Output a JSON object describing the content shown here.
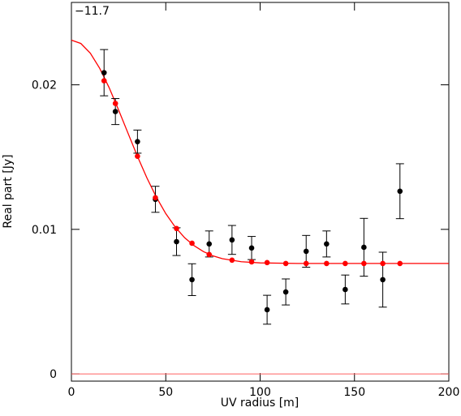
{
  "chart_data": {
    "type": "scatter",
    "annotation": "−11.7",
    "x_label": "UV radius [m]",
    "y_label": "Real part [Jy]",
    "xlim": [
      0,
      200
    ],
    "ylim": [
      -0.0005,
      0.0257
    ],
    "xticks": [
      0,
      50,
      100,
      150,
      200
    ],
    "yticks": [
      0,
      0.01,
      0.02
    ],
    "zero_line_color": "#ff6060",
    "series": [
      {
        "color": "#000000",
        "x": [
          17.3,
          23.3,
          35,
          44.5,
          55.7,
          63.9,
          73,
          85.1,
          95.5,
          103.7,
          113.6,
          124.4,
          135.2,
          145.1,
          155,
          165,
          174.1
        ],
        "values": [
          0.02084,
          0.01815,
          0.01607,
          0.01208,
          0.00915,
          0.00652,
          0.00899,
          0.00927,
          0.00871,
          0.00444,
          0.00567,
          0.00848,
          0.00899,
          0.00584,
          0.00876,
          0.00652,
          0.01264
        ],
        "errors": [
          0.0016,
          0.0009,
          0.0008,
          0.0009,
          0.00096,
          0.0011,
          0.0009,
          0.001,
          0.0008,
          0.001,
          0.0009,
          0.0011,
          0.0009,
          0.001,
          0.002,
          0.0019,
          0.0019
        ]
      },
      {
        "color": "#ff0000",
        "x": [
          17.3,
          23.3,
          35,
          44.5,
          55.7,
          63.9,
          73,
          85.1,
          95.5,
          103.7,
          113.6,
          124.4,
          135.2,
          145.1,
          155,
          165,
          174.1
        ],
        "values": [
          0.02028,
          0.01871,
          0.01506,
          0.01219,
          0.01006,
          0.00904,
          0.00826,
          0.00787,
          0.00775,
          0.0077,
          0.00764,
          0.00764,
          0.00764,
          0.00764,
          0.00764,
          0.00764,
          0.00764
        ]
      }
    ],
    "model_curve": {
      "color": "#ff0000",
      "x": [
        0,
        5,
        10,
        15,
        20,
        25,
        30,
        35,
        40,
        45,
        50,
        55,
        60,
        65,
        70,
        75,
        80,
        90,
        100,
        120,
        200
      ],
      "values": [
        0.02309,
        0.02286,
        0.02219,
        0.02114,
        0.0198,
        0.01826,
        0.01665,
        0.01505,
        0.01356,
        0.01223,
        0.01109,
        0.01016,
        0.00942,
        0.00887,
        0.00846,
        0.00817,
        0.00797,
        0.00776,
        0.00768,
        0.00764,
        0.00764
      ]
    }
  }
}
